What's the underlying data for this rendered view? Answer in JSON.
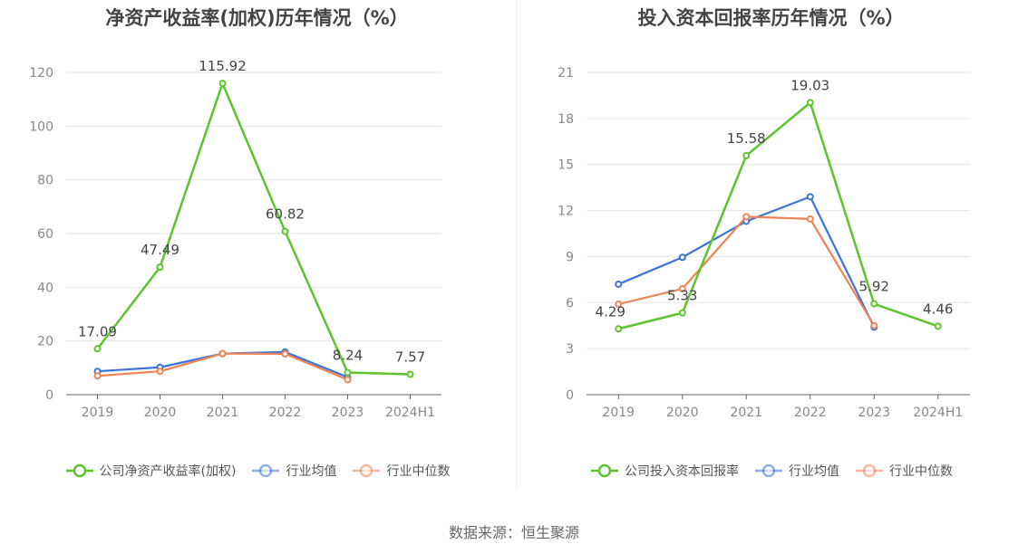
{
  "source": "数据来源：恒生聚源",
  "chart_data": [
    {
      "type": "line",
      "title": "净资产收益率(加权)历年情况（%）",
      "categories": [
        "2019",
        "2020",
        "2021",
        "2022",
        "2023",
        "2024H1"
      ],
      "ylim": [
        0,
        120
      ],
      "yticks": [
        0,
        20,
        40,
        60,
        80,
        100,
        120
      ],
      "grid": true,
      "legend": "bottom",
      "series": [
        {
          "name": "公司净资产收益率(加权)",
          "color": "#5cc42c",
          "values": [
            17.09,
            47.49,
            115.92,
            60.82,
            8.24,
            7.57
          ],
          "labels": [
            "17.09",
            "47.49",
            "115.92",
            "60.82",
            "8.24",
            "7.57"
          ]
        },
        {
          "name": "行业均值",
          "color": "#3b74d9",
          "values": [
            8.7,
            10.2,
            15.3,
            15.9,
            6.5,
            null
          ]
        },
        {
          "name": "行业中位数",
          "color": "#ef8356",
          "values": [
            7.0,
            8.7,
            15.3,
            15.2,
            5.6,
            null
          ]
        }
      ]
    },
    {
      "type": "line",
      "title": "投入资本回报率历年情况（%）",
      "categories": [
        "2019",
        "2020",
        "2021",
        "2022",
        "2023",
        "2024H1"
      ],
      "ylim": [
        0,
        21
      ],
      "yticks": [
        0,
        3,
        6,
        9,
        12,
        15,
        18,
        21
      ],
      "grid": true,
      "legend": "bottom",
      "series": [
        {
          "name": "公司投入资本回报率",
          "color": "#5cc42c",
          "values": [
            4.29,
            5.33,
            15.58,
            19.03,
            5.92,
            4.46
          ],
          "labels": [
            "4.29",
            "5.33",
            "15.58",
            "19.03",
            "5.92",
            "4.46"
          ]
        },
        {
          "name": "行业均值",
          "color": "#3b74d9",
          "values": [
            7.2,
            8.95,
            11.3,
            12.9,
            4.4,
            null
          ]
        },
        {
          "name": "行业中位数",
          "color": "#ef8356",
          "values": [
            5.9,
            6.9,
            11.6,
            11.45,
            4.5,
            null
          ]
        }
      ]
    }
  ]
}
